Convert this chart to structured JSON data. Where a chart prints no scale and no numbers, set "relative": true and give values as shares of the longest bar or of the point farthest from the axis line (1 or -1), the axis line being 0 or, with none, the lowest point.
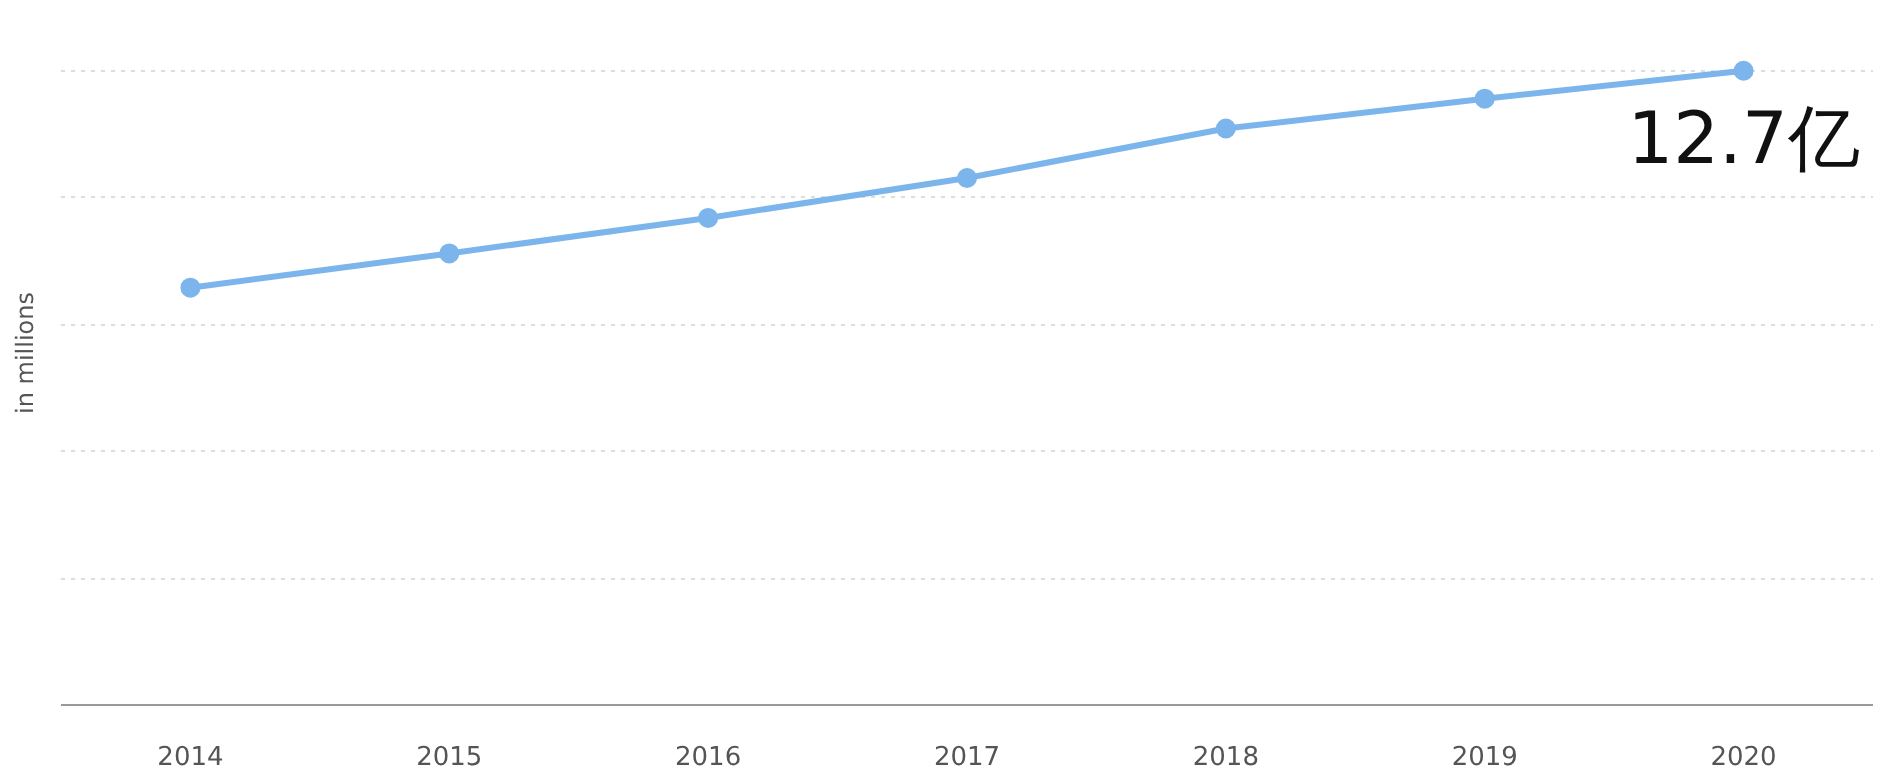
{
  "chart_data": {
    "type": "line",
    "relative": true,
    "ylabel": "in millions",
    "categories": [
      "2014",
      "2015",
      "2016",
      "2017",
      "2018",
      "2019",
      "2020"
    ],
    "series": [
      {
        "color": "#7cb5ec",
        "values": [
          0.658,
          0.712,
          0.768,
          0.831,
          0.909,
          0.956,
          1.0
        ]
      }
    ],
    "annotations": [
      {
        "text": "12.7亿",
        "x": "2020",
        "y": 1.0
      }
    ],
    "grid": "y",
    "marker": "circle",
    "line_style": "solid"
  }
}
